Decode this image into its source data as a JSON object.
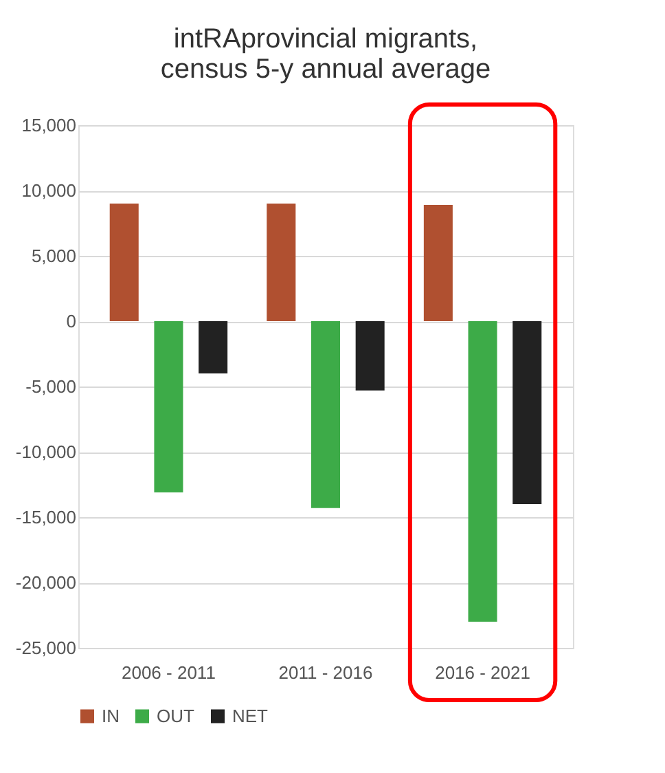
{
  "chart_data": {
    "type": "bar",
    "title": "intRAprovincial migrants,\ncensus 5-y annual average",
    "categories": [
      "2006 - 2011",
      "2011 - 2016",
      "2016 - 2021"
    ],
    "series": [
      {
        "name": "IN",
        "color": "#b05030",
        "values": [
          9000,
          9000,
          8900
        ]
      },
      {
        "name": "OUT",
        "color": "#3dab48",
        "values": [
          -13100,
          -14300,
          -23000
        ]
      },
      {
        "name": "NET",
        "color": "#222222",
        "values": [
          -4000,
          -5300,
          -14000
        ]
      }
    ],
    "ylim": [
      -25000,
      15000
    ],
    "yticks": [
      {
        "value": -25000,
        "label": "-25,000"
      },
      {
        "value": -20000,
        "label": "-20,000"
      },
      {
        "value": -15000,
        "label": "-15,000"
      },
      {
        "value": -10000,
        "label": "-10,000"
      },
      {
        "value": -5000,
        "label": "-5,000"
      },
      0,
      {
        "value": 5000,
        "label": "5,000"
      },
      {
        "value": 10000,
        "label": "10,000"
      },
      {
        "value": 15000,
        "label": "15,000"
      }
    ],
    "grid": "y",
    "legend": "bottom"
  }
}
